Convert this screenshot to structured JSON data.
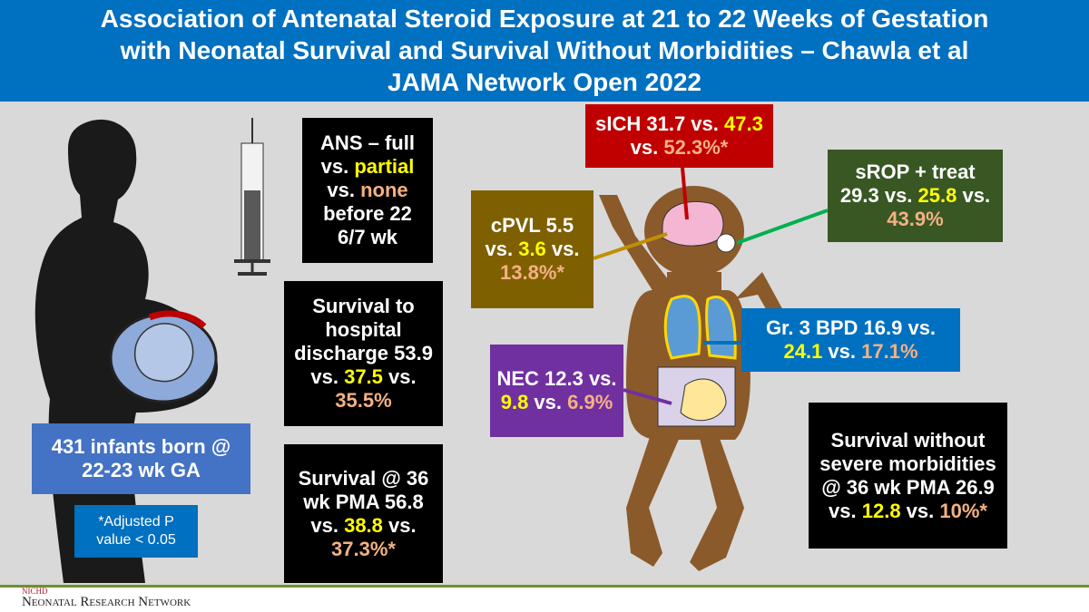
{
  "header": {
    "title_lines": [
      "Association of Antenatal Steroid Exposure at 21 to 22 Weeks of Gestation",
      "with Neonatal Survival and Survival Without Morbidities – Chawla et al",
      "JAMA Network Open 2022"
    ]
  },
  "boxes": [
    {
      "color": "#000000",
      "segments": [
        {
          "text": "ANS – full vs. ",
          "color": "#ffffff"
        },
        {
          "text": "partial",
          "color": "#ffff00"
        },
        {
          "text": " vs. ",
          "color": "#ffffff"
        },
        {
          "text": "none",
          "color": "#f4b183"
        },
        {
          "text": " before 22 6/7 wk",
          "color": "#ffffff"
        }
      ]
    },
    {
      "color": "#000000",
      "segments": [
        {
          "text": "Survival to hospital discharge 53.9 vs. ",
          "color": "#ffffff"
        },
        {
          "text": "37.5",
          "color": "#ffff00"
        },
        {
          "text": " vs. ",
          "color": "#ffffff"
        },
        {
          "text": "35.5%",
          "color": "#f4b183"
        }
      ]
    },
    {
      "color": "#000000",
      "segments": [
        {
          "text": "Survival @ 36 wk PMA 56.8 vs. ",
          "color": "#ffffff"
        },
        {
          "text": "38.8",
          "color": "#ffff00"
        },
        {
          "text": " vs. ",
          "color": "#ffffff"
        },
        {
          "text": "37.3%*",
          "color": "#f4b183"
        }
      ]
    },
    {
      "color": "#4472c4",
      "segments": [
        {
          "text": "431 infants born @ 22-23 wk GA",
          "color": "#ffffff"
        }
      ]
    },
    {
      "color": "#0070c0",
      "segments": [
        {
          "text": "*Adjusted P value < 0.05",
          "color": "#ffffff"
        }
      ]
    },
    {
      "color": "#c00000",
      "segments": [
        {
          "text": "sICH 31.7 vs. ",
          "color": "#ffffff"
        },
        {
          "text": "47.3",
          "color": "#ffff00"
        },
        {
          "text": " vs. ",
          "color": "#ffffff"
        },
        {
          "text": "52.3%*",
          "color": "#f4b183"
        }
      ]
    },
    {
      "color": "#385723",
      "segments": [
        {
          "text": "sROP + treat 29.3 vs. ",
          "color": "#ffffff"
        },
        {
          "text": "25.8",
          "color": "#ffff00"
        },
        {
          "text": " vs. ",
          "color": "#ffffff"
        },
        {
          "text": "43.9%",
          "color": "#f4b183"
        }
      ]
    },
    {
      "color": "#7f6000",
      "segments": [
        {
          "text": "cPVL 5.5 vs. ",
          "color": "#ffffff"
        },
        {
          "text": "3.6",
          "color": "#ffff00"
        },
        {
          "text": " vs. ",
          "color": "#ffffff"
        },
        {
          "text": "13.8%*",
          "color": "#f4b183"
        }
      ]
    },
    {
      "color": "#0070c0",
      "segments": [
        {
          "text": "Gr. 3 BPD 16.9 vs. ",
          "color": "#ffffff"
        },
        {
          "text": "24.1",
          "color": "#ffff00"
        },
        {
          "text": " vs. ",
          "color": "#ffffff"
        },
        {
          "text": "17.1%",
          "color": "#f4b183"
        }
      ]
    },
    {
      "color": "#7030a0",
      "segments": [
        {
          "text": "NEC 12.3 vs. ",
          "color": "#ffffff"
        },
        {
          "text": "9.8",
          "color": "#ffff00"
        },
        {
          "text": " vs. ",
          "color": "#ffffff"
        },
        {
          "text": "6.9%",
          "color": "#f4b183"
        }
      ]
    },
    {
      "color": "#000000",
      "segments": [
        {
          "text": "Survival without severe morbidities @ 36 wk PMA 26.9 vs. ",
          "color": "#ffffff"
        },
        {
          "text": "12.8",
          "color": "#ffff00"
        },
        {
          "text": " vs. ",
          "color": "#ffffff"
        },
        {
          "text": "10%*",
          "color": "#f4b183"
        }
      ]
    }
  ],
  "footer": {
    "org": "NICHD",
    "network": "Neonatal Research Network"
  }
}
